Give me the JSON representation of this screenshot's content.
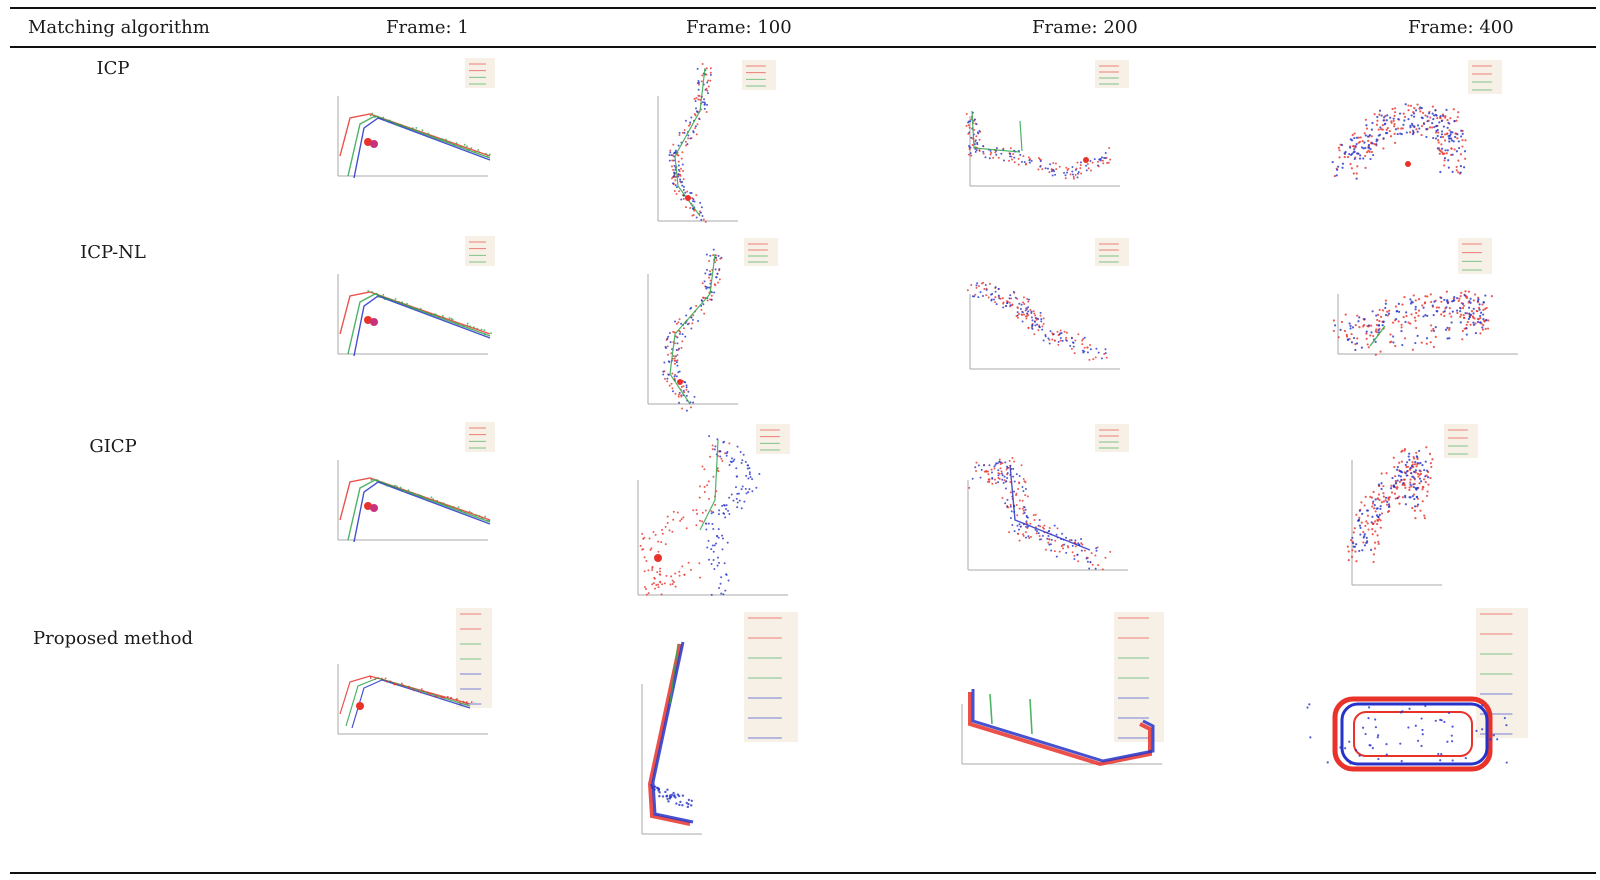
{
  "table": {
    "column_headers": [
      "Matching algorithm",
      "Frame: 1",
      "Frame: 100",
      "Frame: 200",
      "Frame: 400"
    ],
    "row_labels": [
      "ICP",
      "ICP-NL",
      "GICP",
      "Proposed method"
    ]
  },
  "colors": {
    "red": "#e8322a",
    "green": "#2fa64a",
    "blue": "#2632c8",
    "legend_bg": "#f6f0e6",
    "rule": "#111111",
    "text": "#1a1a1a"
  }
}
